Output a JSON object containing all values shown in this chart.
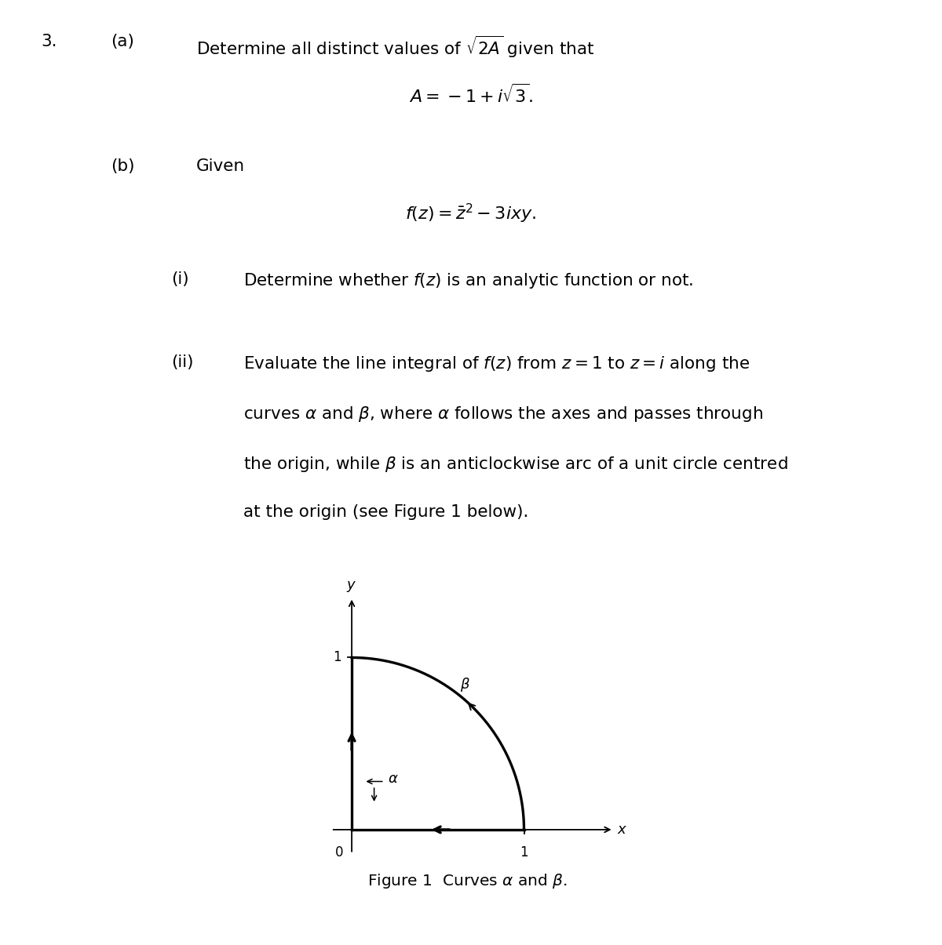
{
  "background_color": "#ffffff",
  "fig_width": 12.0,
  "fig_height": 12.05,
  "text_color": "#000000",
  "question_number": "3.",
  "part_a_label": "(a)",
  "part_a_text": "Determine all distinct values of $\\sqrt{2A}$ given that",
  "part_a_equation": "$A = -1 + i\\sqrt{3}.$",
  "part_b_label": "(b)",
  "part_b_text": "Given",
  "part_b_equation": "$f(z) = \\bar{z}^2 - 3ixy.$",
  "part_i_label": "(i)",
  "part_i_text": "Determine whether $f(z)$ is an analytic function or not.",
  "part_ii_label": "(ii)",
  "part_ii_text": "Evaluate the line integral of $f(z)$ from $z = 1$ to $z = i$ along the\ncurves $\\alpha$ and $\\beta$, where $\\alpha$ follows the axes and passes through\nthe origin, while $\\beta$ is an anticlockwise arc of a unit circle centred\nat the origin (see Figure 1 below).",
  "figure_caption": "Figure 1  Curves $\\alpha$ and $\\beta$.",
  "font_size_main": 15.5,
  "font_size_caption": 14.5
}
